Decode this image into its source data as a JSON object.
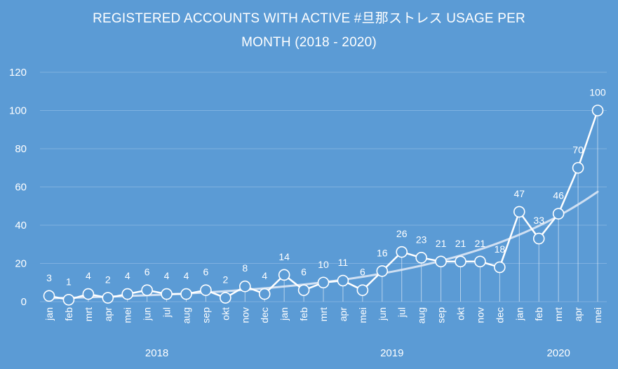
{
  "chart_data": {
    "type": "line",
    "title_line1": "REGISTERED ACCOUNTS WITH ACTIVE #旦那ストレス USAGE PER",
    "title_line2": "MONTH (2018 - 2020)",
    "categories": [
      "jan",
      "feb",
      "mrt",
      "apr",
      "mei",
      "jun",
      "jul",
      "aug",
      "sep",
      "okt",
      "nov",
      "dec",
      "jan",
      "feb",
      "mrt",
      "apr",
      "mei",
      "jun",
      "jul",
      "aug",
      "sep",
      "okt",
      "nov",
      "dec",
      "jan",
      "feb",
      "mrt",
      "apr",
      "mei"
    ],
    "groups": [
      {
        "label": "2018",
        "start": 0,
        "end": 11
      },
      {
        "label": "2019",
        "start": 12,
        "end": 23
      },
      {
        "label": "2020",
        "start": 24,
        "end": 28
      }
    ],
    "series": [
      {
        "values": [
          3,
          1,
          4,
          2,
          4,
          6,
          4,
          4,
          6,
          2,
          8,
          4,
          14,
          6,
          10,
          11,
          6,
          16,
          26,
          23,
          21,
          21,
          21,
          18,
          47,
          33,
          46,
          70,
          100
        ]
      }
    ],
    "trendline": {
      "type": "exponential"
    },
    "ylim": [
      0,
      120
    ],
    "yticks": [
      0,
      20,
      40,
      60,
      80,
      100,
      120
    ],
    "grid": true,
    "legend": "none",
    "colors": {
      "background": "#5b9bd5",
      "line": "#ffffff",
      "trend": "#dbe7f5",
      "grid": "#7fb1e0"
    }
  }
}
